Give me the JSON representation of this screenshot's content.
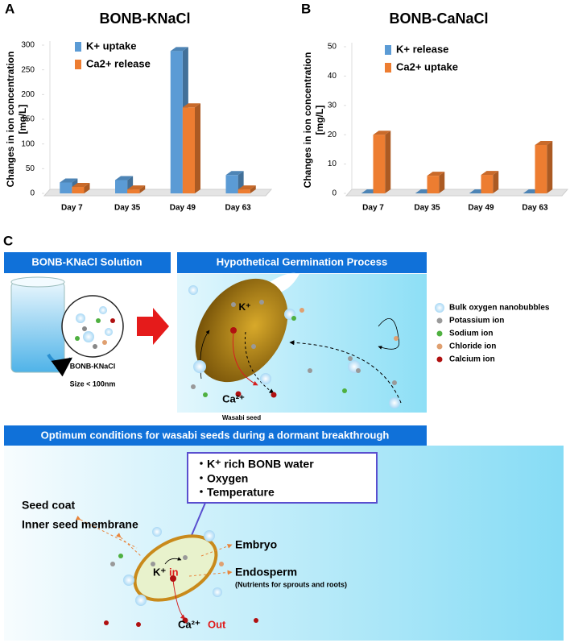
{
  "chart_data": [
    {
      "type": "bar3d",
      "label": "A",
      "title": "BONB-KNaCl",
      "y_label": [
        "Changes in ion concentration",
        "[mg/L]"
      ],
      "categories": [
        "Day 7",
        "Day 35",
        "Day 49",
        "Day 63"
      ],
      "series": [
        {
          "name": "K+  uptake",
          "color": "#5b9bd5",
          "values": [
            22,
            27,
            288,
            37
          ]
        },
        {
          "name": "Ca2+ release",
          "color": "#ed7d31",
          "values": [
            13,
            8,
            174,
            8
          ]
        }
      ],
      "ylim": [
        0,
        300
      ],
      "yticks": [
        0,
        50,
        100,
        150,
        200,
        250,
        300
      ],
      "grid": false,
      "legend": "upper left"
    },
    {
      "type": "bar3d",
      "label": "B",
      "title": "BONB-CaNaCl",
      "y_label": [
        "Changes in ion concentration",
        "[mg/L]"
      ],
      "categories": [
        "Day 7",
        "Day 35",
        "Day 49",
        "Day 63"
      ],
      "series": [
        {
          "name": "K+ release",
          "color": "#5b9bd5",
          "values": [
            0,
            0,
            0,
            0
          ]
        },
        {
          "name": "Ca2+ uptake",
          "color": "#ed7d31",
          "values": [
            20,
            6,
            6.3,
            16.5
          ]
        }
      ],
      "ylim": [
        0,
        50
      ],
      "yticks": [
        0,
        10,
        20,
        30,
        40,
        50
      ],
      "grid": false,
      "legend": "upper left"
    }
  ],
  "diagram": {
    "label": "C",
    "solution": {
      "header": "BONB-KNaCl Solution",
      "name": "BONB-KNaCl",
      "size": "Size < 100nm"
    },
    "process": {
      "header": "Hypothetical Germination Process",
      "k_ion": "K⁺",
      "ca_ion": "Ca²⁺",
      "seed": "Wasabi seed"
    },
    "legend": [
      "Bulk oxygen nanobubbles",
      "Potassium ion",
      "Sodium ion",
      "Chloride ion",
      "Calcium ion"
    ],
    "conditions": {
      "header": "Optimum conditions for wasabi seeds during a dormant breakthrough",
      "items": [
        "・K⁺ rich BONB water",
        "・Oxygen",
        "・Temperature"
      ],
      "parts": [
        "Seed coat",
        "Inner seed membrane",
        "Embryo",
        "Endosperm"
      ],
      "endosperm_note": "(Nutrients for sprouts and roots)",
      "k_ion": "K⁺",
      "in": "in",
      "ca_ion": "Ca²⁺",
      "out": "Out"
    }
  }
}
